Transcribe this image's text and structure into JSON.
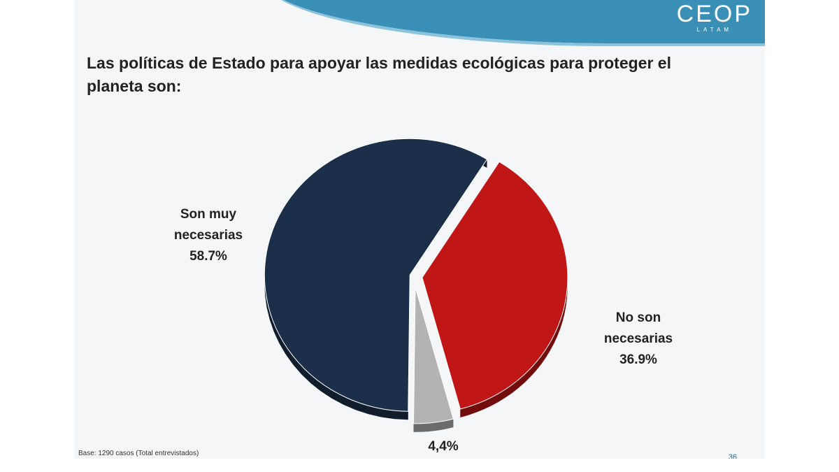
{
  "slide": {
    "logo": {
      "main": "CEOP",
      "sub": "LATAM"
    },
    "title": "Las políticas de Estado para apoyar las medidas ecológicas para proteger el planeta son:",
    "base_note": "Base: 1290 casos (Total entrevistados)",
    "page_number": "36"
  },
  "colors": {
    "header_blue": "#3a8fb7",
    "navy": "#1c2f4a",
    "red": "#c01616",
    "gray": "#b3b3b3"
  },
  "chart_data": {
    "type": "pie",
    "style": "3d-exploded",
    "slices": [
      {
        "label_line1": "Son muy",
        "label_line2": "necesarias",
        "value_label": "58.7%",
        "value": 58.7,
        "color": "#1c2f4a"
      },
      {
        "label_line1": "No son",
        "label_line2": "necesarias",
        "value_label": "36.9%",
        "value": 36.9,
        "color": "#c01616"
      },
      {
        "label_line1": "",
        "label_line2": "",
        "value_label": "4,4%",
        "value": 4.4,
        "color": "#b3b3b3"
      }
    ]
  }
}
